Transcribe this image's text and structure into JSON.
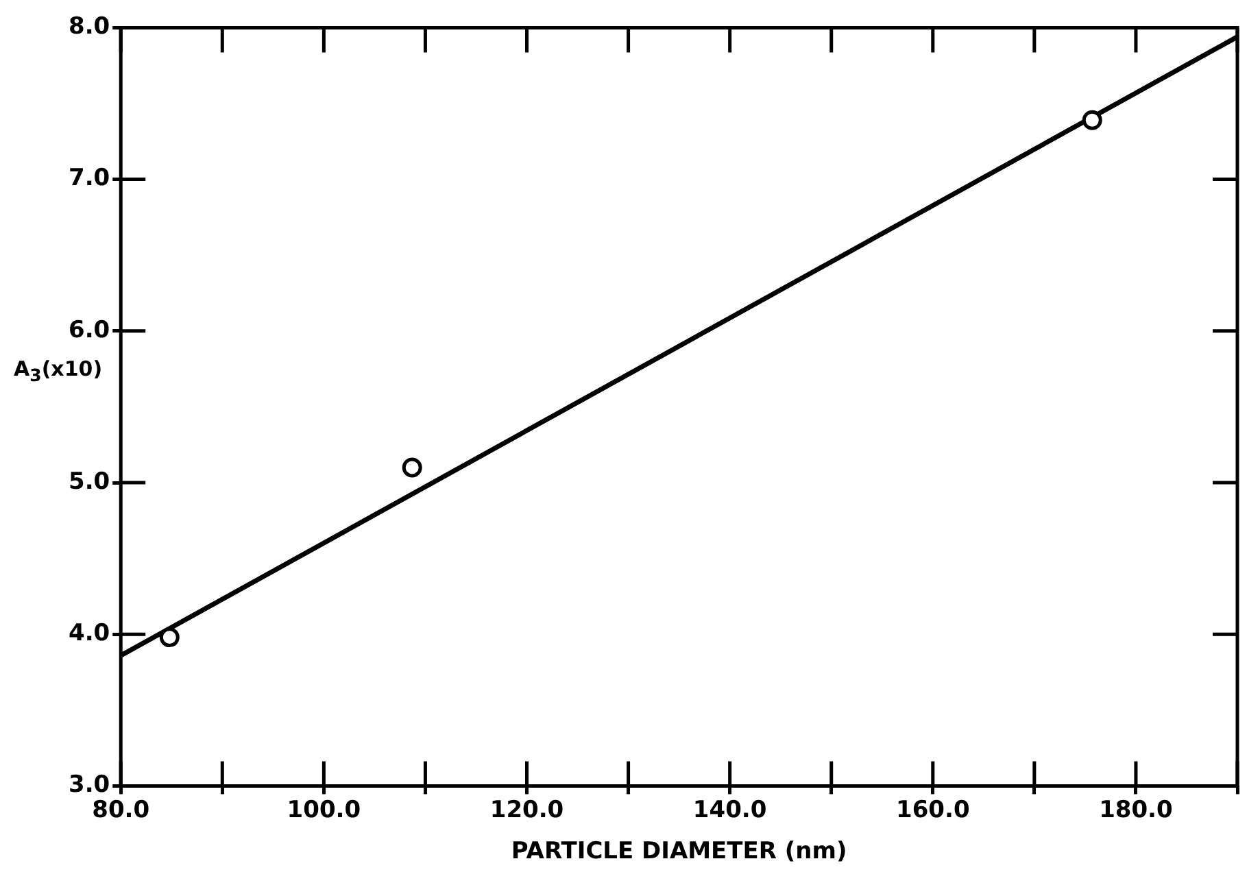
{
  "chart_data": {
    "type": "scatter",
    "xlabel": "PARTICLE DIAMETER (nm)",
    "ylabel": "A$_{3}$(x10)",
    "xlim": [
      80,
      190
    ],
    "ylim": [
      3,
      8
    ],
    "xticks": [
      {
        "value": 80,
        "label": "80.0"
      },
      {
        "value": 90,
        "label": null
      },
      {
        "value": 100,
        "label": "100.0"
      },
      {
        "value": 110,
        "label": null
      },
      {
        "value": 120,
        "label": "120.0"
      },
      {
        "value": 130,
        "label": null
      },
      {
        "value": 140,
        "label": "140.0"
      },
      {
        "value": 150,
        "label": null
      },
      {
        "value": 160,
        "label": "160.0"
      },
      {
        "value": 170,
        "label": null
      },
      {
        "value": 180,
        "label": "180.0"
      },
      {
        "value": 190,
        "label": null
      }
    ],
    "yticks": [
      {
        "value": 3,
        "label": "3.0"
      },
      {
        "value": 4,
        "label": "4.0"
      },
      {
        "value": 5,
        "label": "5.0"
      },
      {
        "value": 6,
        "label": "6.0"
      },
      {
        "value": 7,
        "label": "7.0"
      },
      {
        "value": 8,
        "label": "8.0"
      }
    ],
    "grid": false,
    "legend": false,
    "series": [
      {
        "color": "#000000",
        "marker": "circle",
        "x": [
          84.8,
          108.7,
          175.7
        ],
        "values": [
          3.98,
          5.1,
          7.39
        ]
      },
      {
        "type": "line",
        "color": "#000000",
        "marker": "none",
        "line_style": "solid",
        "x": [
          80,
          190
        ],
        "values": [
          3.86,
          7.94
        ]
      }
    ]
  }
}
